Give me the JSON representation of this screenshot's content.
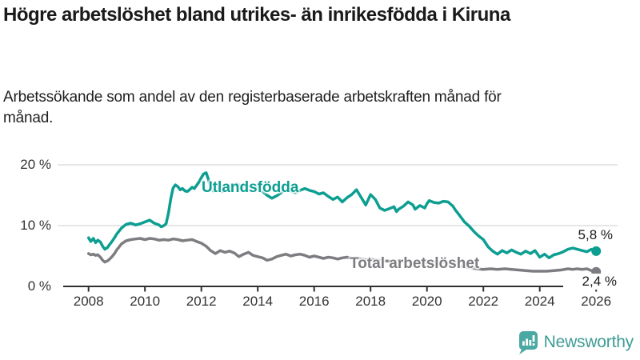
{
  "header": {
    "title": "Högre arbetslöshet bland utrikes- än inrikesfödda i Kiruna",
    "subtitle": "Arbetssökande som andel av den registerbaserade arbetskraften månad för månad."
  },
  "footer": {
    "brand": "Newsworthy",
    "brand_color": "#3d9b95",
    "icon": "newsworthy-speech-bubble-bar-chart-icon",
    "icon_color": "#4aa9a2"
  },
  "chart_data": {
    "type": "line",
    "title": "Högre arbetslöshet bland utrikes- än inrikesfödda i Kiruna",
    "subtitle": "Arbetssökande som andel av den registerbaserade arbetskraften månad för månad.",
    "grid": "horizontal",
    "xlim": [
      2007.85,
      2026.35
    ],
    "ylim": [
      0,
      21
    ],
    "x_ticks": [
      2008,
      2010,
      2012,
      2014,
      2016,
      2018,
      2020,
      2022,
      2024,
      2026
    ],
    "x_tick_labels": [
      "2008",
      "2010",
      "2012",
      "2014",
      "2016",
      "2018",
      "2020",
      "2022",
      "2024",
      "2026"
    ],
    "y_ticks": [
      0,
      10,
      20
    ],
    "y_tick_labels": [
      "0 %",
      "10 %",
      "20 %"
    ],
    "colors": {
      "gridline": "#d8d8d8",
      "axis": "#2f2f2f"
    },
    "series": [
      {
        "name": "Utlandsfödda",
        "color": "#0d9e92",
        "end_label": "5,8 %",
        "end_value": 5.8,
        "points": [
          [
            2008.0,
            8.0
          ],
          [
            2008.08,
            7.4
          ],
          [
            2008.17,
            7.9
          ],
          [
            2008.25,
            7.2
          ],
          [
            2008.33,
            7.6
          ],
          [
            2008.42,
            7.3
          ],
          [
            2008.5,
            6.6
          ],
          [
            2008.58,
            6.1
          ],
          [
            2008.67,
            6.4
          ],
          [
            2008.75,
            6.9
          ],
          [
            2008.83,
            7.4
          ],
          [
            2008.92,
            8.0
          ],
          [
            2009.0,
            8.6
          ],
          [
            2009.17,
            9.6
          ],
          [
            2009.33,
            10.2
          ],
          [
            2009.5,
            10.4
          ],
          [
            2009.67,
            10.1
          ],
          [
            2009.83,
            10.3
          ],
          [
            2010.0,
            10.6
          ],
          [
            2010.17,
            10.9
          ],
          [
            2010.33,
            10.4
          ],
          [
            2010.5,
            10.1
          ],
          [
            2010.58,
            9.8
          ],
          [
            2010.67,
            10.0
          ],
          [
            2010.75,
            10.3
          ],
          [
            2010.83,
            12.0
          ],
          [
            2010.92,
            14.5
          ],
          [
            2011.0,
            16.2
          ],
          [
            2011.08,
            16.7
          ],
          [
            2011.17,
            16.4
          ],
          [
            2011.25,
            15.9
          ],
          [
            2011.33,
            16.1
          ],
          [
            2011.42,
            15.7
          ],
          [
            2011.5,
            15.6
          ],
          [
            2011.58,
            15.9
          ],
          [
            2011.67,
            16.3
          ],
          [
            2011.75,
            16.1
          ],
          [
            2011.83,
            16.6
          ],
          [
            2011.92,
            17.2
          ],
          [
            2012.0,
            17.9
          ],
          [
            2012.08,
            18.5
          ],
          [
            2012.17,
            18.7
          ],
          [
            2012.25,
            17.6
          ],
          [
            2012.33,
            16.2
          ],
          [
            2012.42,
            15.7
          ],
          [
            2012.5,
            15.9
          ],
          [
            2012.58,
            16.3
          ],
          [
            2012.67,
            16.0
          ],
          [
            2012.75,
            15.6
          ],
          [
            2012.83,
            15.9
          ],
          [
            2012.92,
            16.2
          ],
          [
            2013.0,
            16.4
          ],
          [
            2013.17,
            16.7
          ],
          [
            2013.25,
            16.9
          ],
          [
            2013.42,
            16.4
          ],
          [
            2013.58,
            16.0
          ],
          [
            2013.75,
            15.7
          ],
          [
            2013.92,
            16.0
          ],
          [
            2014.0,
            16.3
          ],
          [
            2014.17,
            15.6
          ],
          [
            2014.33,
            15.0
          ],
          [
            2014.5,
            14.5
          ],
          [
            2014.67,
            14.9
          ],
          [
            2014.83,
            15.4
          ],
          [
            2015.0,
            16.0
          ],
          [
            2015.17,
            15.7
          ],
          [
            2015.33,
            15.4
          ],
          [
            2015.5,
            15.8
          ],
          [
            2015.67,
            16.1
          ],
          [
            2015.83,
            15.8
          ],
          [
            2016.0,
            15.6
          ],
          [
            2016.17,
            15.2
          ],
          [
            2016.33,
            15.4
          ],
          [
            2016.5,
            14.8
          ],
          [
            2016.67,
            14.3
          ],
          [
            2016.83,
            14.7
          ],
          [
            2017.0,
            13.9
          ],
          [
            2017.17,
            14.6
          ],
          [
            2017.33,
            15.1
          ],
          [
            2017.5,
            15.9
          ],
          [
            2017.67,
            14.6
          ],
          [
            2017.83,
            13.4
          ],
          [
            2018.0,
            15.1
          ],
          [
            2018.17,
            14.3
          ],
          [
            2018.33,
            12.9
          ],
          [
            2018.5,
            12.5
          ],
          [
            2018.67,
            12.8
          ],
          [
            2018.83,
            13.1
          ],
          [
            2018.92,
            12.3
          ],
          [
            2019.0,
            12.7
          ],
          [
            2019.17,
            13.2
          ],
          [
            2019.33,
            13.9
          ],
          [
            2019.5,
            13.4
          ],
          [
            2019.58,
            12.7
          ],
          [
            2019.75,
            13.3
          ],
          [
            2019.92,
            12.9
          ],
          [
            2020.0,
            13.6
          ],
          [
            2020.08,
            14.1
          ],
          [
            2020.25,
            13.8
          ],
          [
            2020.42,
            13.7
          ],
          [
            2020.58,
            14.0
          ],
          [
            2020.75,
            13.9
          ],
          [
            2020.92,
            13.2
          ],
          [
            2021.0,
            12.6
          ],
          [
            2021.17,
            11.6
          ],
          [
            2021.33,
            10.6
          ],
          [
            2021.5,
            9.9
          ],
          [
            2021.67,
            9.0
          ],
          [
            2021.83,
            8.3
          ],
          [
            2022.0,
            7.7
          ],
          [
            2022.17,
            6.5
          ],
          [
            2022.33,
            5.8
          ],
          [
            2022.5,
            5.3
          ],
          [
            2022.67,
            5.9
          ],
          [
            2022.83,
            5.5
          ],
          [
            2023.0,
            6.0
          ],
          [
            2023.17,
            5.6
          ],
          [
            2023.33,
            5.3
          ],
          [
            2023.5,
            5.8
          ],
          [
            2023.67,
            5.4
          ],
          [
            2023.83,
            5.9
          ],
          [
            2024.0,
            4.8
          ],
          [
            2024.17,
            5.3
          ],
          [
            2024.33,
            4.7
          ],
          [
            2024.5,
            5.2
          ],
          [
            2024.67,
            5.4
          ],
          [
            2024.83,
            5.7
          ],
          [
            2025.0,
            6.1
          ],
          [
            2025.17,
            6.3
          ],
          [
            2025.33,
            6.1
          ],
          [
            2025.5,
            5.9
          ],
          [
            2025.67,
            5.7
          ],
          [
            2025.83,
            6.1
          ],
          [
            2026.0,
            5.8
          ]
        ]
      },
      {
        "name": "Total arbetslöshet",
        "color": "#7d7d81",
        "end_label": "2,4 %",
        "end_value": 2.4,
        "points": [
          [
            2008.0,
            5.4
          ],
          [
            2008.08,
            5.2
          ],
          [
            2008.17,
            5.3
          ],
          [
            2008.25,
            5.1
          ],
          [
            2008.33,
            5.2
          ],
          [
            2008.42,
            4.8
          ],
          [
            2008.5,
            4.3
          ],
          [
            2008.58,
            4.0
          ],
          [
            2008.67,
            4.2
          ],
          [
            2008.75,
            4.5
          ],
          [
            2008.83,
            4.9
          ],
          [
            2008.92,
            5.4
          ],
          [
            2009.0,
            6.0
          ],
          [
            2009.17,
            7.0
          ],
          [
            2009.33,
            7.5
          ],
          [
            2009.5,
            7.7
          ],
          [
            2009.67,
            7.8
          ],
          [
            2009.83,
            7.9
          ],
          [
            2010.0,
            7.7
          ],
          [
            2010.17,
            7.9
          ],
          [
            2010.33,
            7.8
          ],
          [
            2010.5,
            7.6
          ],
          [
            2010.67,
            7.7
          ],
          [
            2010.83,
            7.6
          ],
          [
            2011.0,
            7.8
          ],
          [
            2011.17,
            7.7
          ],
          [
            2011.33,
            7.5
          ],
          [
            2011.5,
            7.6
          ],
          [
            2011.67,
            7.7
          ],
          [
            2011.83,
            7.4
          ],
          [
            2012.0,
            7.1
          ],
          [
            2012.17,
            6.6
          ],
          [
            2012.33,
            5.9
          ],
          [
            2012.5,
            5.4
          ],
          [
            2012.67,
            5.9
          ],
          [
            2012.83,
            5.6
          ],
          [
            2013.0,
            5.8
          ],
          [
            2013.17,
            5.5
          ],
          [
            2013.33,
            4.9
          ],
          [
            2013.5,
            5.3
          ],
          [
            2013.67,
            5.6
          ],
          [
            2013.83,
            5.1
          ],
          [
            2014.0,
            4.9
          ],
          [
            2014.17,
            4.7
          ],
          [
            2014.33,
            4.3
          ],
          [
            2014.5,
            4.5
          ],
          [
            2014.67,
            4.9
          ],
          [
            2014.83,
            5.1
          ],
          [
            2015.0,
            5.3
          ],
          [
            2015.17,
            5.0
          ],
          [
            2015.33,
            5.2
          ],
          [
            2015.5,
            5.3
          ],
          [
            2015.67,
            5.1
          ],
          [
            2015.83,
            4.8
          ],
          [
            2016.0,
            5.0
          ],
          [
            2016.17,
            4.8
          ],
          [
            2016.33,
            4.6
          ],
          [
            2016.5,
            4.8
          ],
          [
            2016.67,
            4.7
          ],
          [
            2016.83,
            4.5
          ],
          [
            2017.0,
            4.7
          ],
          [
            2017.17,
            4.8
          ],
          [
            2017.33,
            4.6
          ],
          [
            2017.5,
            4.7
          ],
          [
            2017.67,
            4.5
          ],
          [
            2017.83,
            4.4
          ],
          [
            2018.0,
            4.5
          ],
          [
            2018.25,
            4.3
          ],
          [
            2018.5,
            4.2
          ],
          [
            2018.75,
            4.1
          ],
          [
            2019.0,
            4.2
          ],
          [
            2019.25,
            4.0
          ],
          [
            2019.5,
            3.9
          ],
          [
            2019.75,
            3.8
          ],
          [
            2020.0,
            3.9
          ],
          [
            2020.25,
            4.1
          ],
          [
            2020.5,
            4.0
          ],
          [
            2020.75,
            3.8
          ],
          [
            2021.0,
            3.6
          ],
          [
            2021.25,
            3.3
          ],
          [
            2021.5,
            3.1
          ],
          [
            2021.75,
            2.9
          ],
          [
            2022.0,
            2.8
          ],
          [
            2022.25,
            2.9
          ],
          [
            2022.5,
            2.8
          ],
          [
            2022.75,
            2.9
          ],
          [
            2023.0,
            2.8
          ],
          [
            2023.25,
            2.7
          ],
          [
            2023.5,
            2.6
          ],
          [
            2023.75,
            2.5
          ],
          [
            2024.0,
            2.5
          ],
          [
            2024.25,
            2.5
          ],
          [
            2024.5,
            2.6
          ],
          [
            2024.75,
            2.7
          ],
          [
            2025.0,
            2.9
          ],
          [
            2025.17,
            2.8
          ],
          [
            2025.33,
            2.9
          ],
          [
            2025.5,
            2.8
          ],
          [
            2025.67,
            2.9
          ],
          [
            2025.83,
            2.6
          ],
          [
            2026.0,
            2.4
          ]
        ]
      }
    ]
  }
}
